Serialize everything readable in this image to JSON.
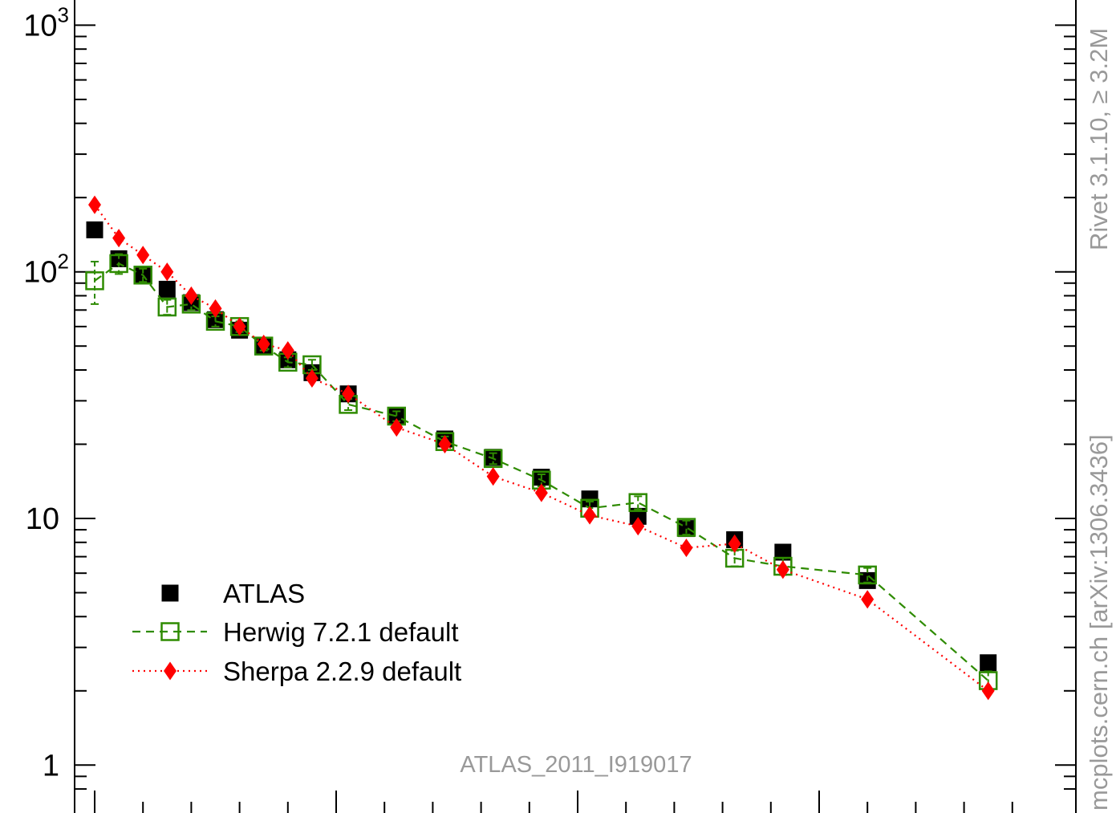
{
  "chart_data": {
    "type": "scatter",
    "title": "",
    "xlabel": "",
    "ylabel": "",
    "yscale": "log",
    "ylim": [
      0.8,
      1150
    ],
    "xlim": [
      -0.75,
      38.5
    ],
    "y_ticks": [
      {
        "value": 1,
        "base": "1",
        "exp": ""
      },
      {
        "value": 10,
        "base": "10",
        "exp": ""
      },
      {
        "value": 100,
        "base": "10",
        "exp": "2"
      },
      {
        "value": 1000,
        "base": "10",
        "exp": "3"
      }
    ],
    "x_major_ticks": [
      0,
      10,
      20,
      30
    ],
    "x_minor_step": 2,
    "grid": false,
    "legend_position": "bottom-left",
    "x": [
      0,
      1,
      2,
      3,
      4,
      5,
      6,
      7,
      8,
      9,
      10.5,
      12.5,
      14.5,
      16.5,
      18.5,
      20.5,
      22.5,
      24.5,
      26.5,
      28.5,
      32,
      37
    ],
    "series": [
      {
        "name": "ATLAS",
        "color": "#000000",
        "marker": "filled-square",
        "line": "none",
        "values": [
          148,
          113,
          97,
          85,
          75,
          64,
          58,
          50,
          44,
          39,
          32,
          26,
          21,
          17.7,
          14.7,
          12,
          10.2,
          9.1,
          8.2,
          7.3,
          5.6,
          2.6
        ]
      },
      {
        "name": "Herwig 7.2.1 default",
        "color": "#2e8b00",
        "marker": "open-square",
        "line": "dashed",
        "values": [
          92,
          108,
          97,
          72,
          74,
          63,
          60,
          50,
          43,
          42,
          29,
          26,
          20.5,
          17.5,
          14.3,
          11,
          11.6,
          9.2,
          6.9,
          6.4,
          5.9,
          2.2
        ],
        "errors": [
          18,
          10,
          6,
          5,
          4,
          3,
          3,
          2,
          2,
          2,
          1.5,
          1.2,
          1,
          0.9,
          0.8,
          0.7,
          0.7,
          0.6,
          0.5,
          0.5,
          0.4,
          0.2
        ]
      },
      {
        "name": "Sherpa 2.2.9 default",
        "color": "#ff0000",
        "marker": "filled-diamond",
        "line": "dotted",
        "values": [
          187,
          137,
          117,
          100,
          80,
          71,
          60,
          51,
          48,
          37,
          32,
          23.4,
          20,
          14.8,
          12.7,
          10.3,
          9.3,
          7.6,
          7.9,
          6.2,
          4.7,
          2.0
        ]
      }
    ],
    "annotation": "ATLAS_2011_I919017",
    "side_text_top": "Rivet 3.1.10,  ≥ 3.2M",
    "side_text_bottom": "mcplots.cern.ch [arXiv:1306.3436]"
  }
}
